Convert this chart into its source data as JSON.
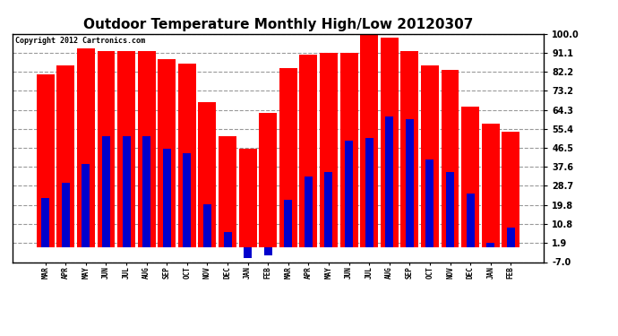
{
  "title": "Outdoor Temperature Monthly High/Low 20120307",
  "copyright": "Copyright 2012 Cartronics.com",
  "months": [
    "MAR",
    "APR",
    "MAY",
    "JUN",
    "JUL",
    "AUG",
    "SEP",
    "OCT",
    "NOV",
    "DEC",
    "JAN",
    "FEB",
    "MAR",
    "APR",
    "MAY",
    "JUN",
    "JUL",
    "AUG",
    "SEP",
    "OCT",
    "NOV",
    "DEC",
    "JAN",
    "FEB"
  ],
  "highs": [
    81,
    85,
    93,
    92,
    92,
    92,
    88,
    86,
    68,
    52,
    46,
    63,
    84,
    90,
    91,
    91,
    100,
    98,
    92,
    85,
    83,
    66,
    58,
    54
  ],
  "lows": [
    23,
    30,
    39,
    52,
    52,
    52,
    46,
    44,
    20,
    7,
    -5,
    -4,
    22,
    33,
    35,
    50,
    51,
    61,
    60,
    41,
    35,
    25,
    2,
    9
  ],
  "high_color": "#ff0000",
  "low_color": "#0000cc",
  "bg_color": "#ffffff",
  "grid_color": "#999999",
  "yticks": [
    100.0,
    91.1,
    82.2,
    73.2,
    64.3,
    55.4,
    46.5,
    37.6,
    28.7,
    19.8,
    10.8,
    1.9,
    -7.0
  ],
  "ymin": -7.0,
  "ymax": 100.0,
  "bar_width": 0.4,
  "title_fontsize": 11,
  "copyright_fontsize": 6,
  "tick_fontsize": 7,
  "xtick_fontsize": 5.5
}
